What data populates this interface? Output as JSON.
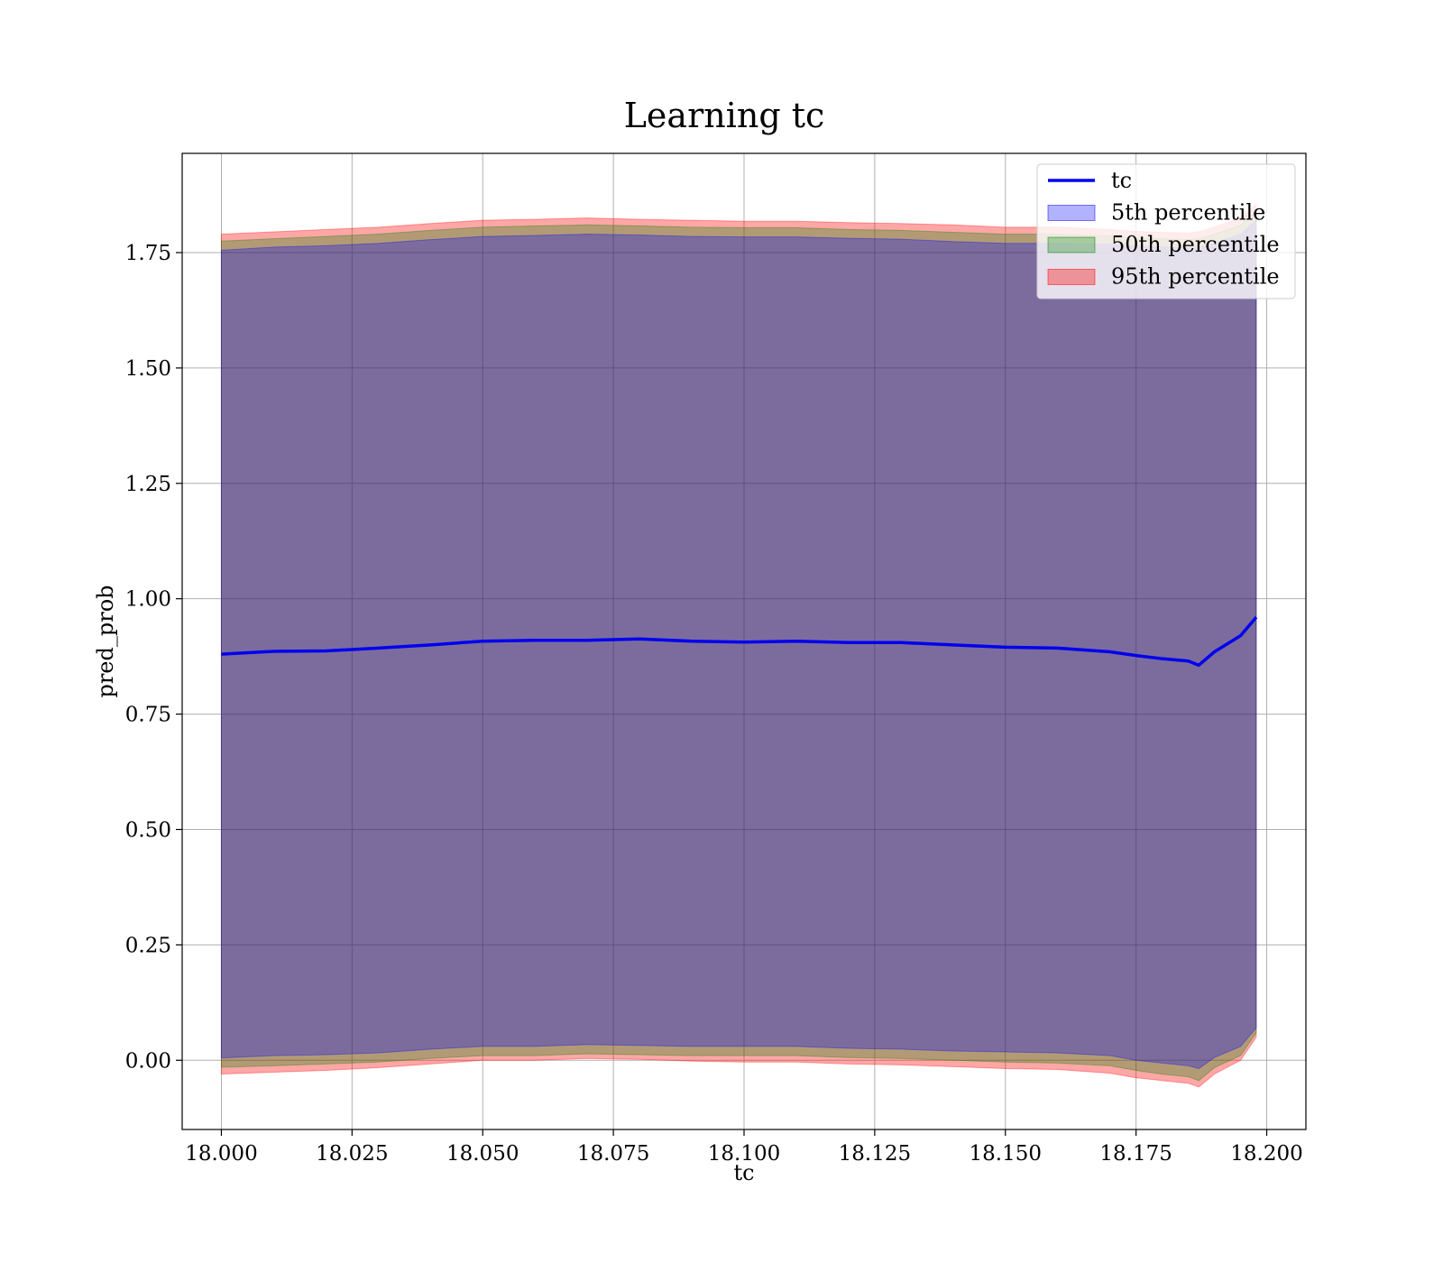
{
  "chart_data": {
    "type": "area",
    "title": "Learning tc",
    "xlabel": "tc",
    "ylabel": "pred_prob",
    "xlim": [
      17.9925,
      18.2075
    ],
    "ylim": [
      -0.15,
      1.965
    ],
    "grid": true,
    "legend_position": "top-right",
    "x_ticks": [
      18.0,
      18.025,
      18.05,
      18.075,
      18.1,
      18.125,
      18.15,
      18.175,
      18.2
    ],
    "x_tick_labels": [
      "18.000",
      "18.025",
      "18.050",
      "18.075",
      "18.100",
      "18.125",
      "18.150",
      "18.175",
      "18.200"
    ],
    "y_ticks": [
      0.0,
      0.25,
      0.5,
      0.75,
      1.0,
      1.25,
      1.5,
      1.75
    ],
    "y_tick_labels": [
      "0.00",
      "0.25",
      "0.50",
      "0.75",
      "1.00",
      "1.25",
      "1.50",
      "1.75"
    ],
    "x": [
      18.0,
      18.01,
      18.02,
      18.03,
      18.04,
      18.05,
      18.06,
      18.07,
      18.08,
      18.09,
      18.1,
      18.11,
      18.12,
      18.13,
      18.14,
      18.15,
      18.16,
      18.17,
      18.175,
      18.18,
      18.185,
      18.187,
      18.19,
      18.195,
      18.198
    ],
    "line": {
      "name": "tc",
      "color": "#0000ee",
      "values": [
        0.88,
        0.886,
        0.887,
        0.893,
        0.9,
        0.908,
        0.91,
        0.91,
        0.913,
        0.908,
        0.906,
        0.908,
        0.905,
        0.905,
        0.9,
        0.895,
        0.893,
        0.885,
        0.877,
        0.87,
        0.865,
        0.856,
        0.885,
        0.92,
        0.96
      ]
    },
    "bands": [
      {
        "name": "5th percentile",
        "color": "#0000ff",
        "opacity": 0.3,
        "lower": [
          0.005,
          0.01,
          0.012,
          0.016,
          0.024,
          0.03,
          0.03,
          0.034,
          0.032,
          0.03,
          0.03,
          0.03,
          0.026,
          0.024,
          0.02,
          0.018,
          0.016,
          0.01,
          0.0,
          -0.006,
          -0.012,
          -0.018,
          0.006,
          0.03,
          0.07
        ],
        "upper": [
          1.755,
          1.762,
          1.765,
          1.77,
          1.778,
          1.785,
          1.787,
          1.79,
          1.788,
          1.785,
          1.784,
          1.784,
          1.781,
          1.779,
          1.774,
          1.77,
          1.77,
          1.768,
          1.764,
          1.762,
          1.76,
          1.762,
          1.77,
          1.79,
          1.82
        ]
      },
      {
        "name": "50th percentile",
        "color": "#008000",
        "opacity": 0.3,
        "lower": [
          -0.015,
          -0.012,
          -0.008,
          -0.004,
          0.004,
          0.01,
          0.01,
          0.014,
          0.012,
          0.01,
          0.01,
          0.01,
          0.006,
          0.004,
          0.0,
          -0.004,
          -0.006,
          -0.012,
          -0.022,
          -0.03,
          -0.036,
          -0.044,
          -0.016,
          0.01,
          0.06
        ],
        "upper": [
          1.775,
          1.78,
          1.785,
          1.79,
          1.798,
          1.805,
          1.808,
          1.81,
          1.808,
          1.805,
          1.804,
          1.804,
          1.8,
          1.798,
          1.794,
          1.79,
          1.79,
          1.786,
          1.782,
          1.78,
          1.778,
          1.78,
          1.79,
          1.81,
          1.84
        ]
      },
      {
        "name": "95th percentile",
        "color": "#ff0000",
        "opacity": 0.35,
        "lower": [
          -0.03,
          -0.026,
          -0.022,
          -0.016,
          -0.008,
          0.0,
          0.0,
          0.004,
          0.002,
          -0.002,
          -0.004,
          -0.004,
          -0.008,
          -0.01,
          -0.014,
          -0.018,
          -0.02,
          -0.028,
          -0.038,
          -0.044,
          -0.05,
          -0.058,
          -0.03,
          0.0,
          0.05
        ],
        "upper": [
          1.79,
          1.795,
          1.8,
          1.805,
          1.813,
          1.82,
          1.822,
          1.825,
          1.822,
          1.82,
          1.818,
          1.818,
          1.815,
          1.813,
          1.81,
          1.805,
          1.805,
          1.8,
          1.796,
          1.794,
          1.792,
          1.795,
          1.805,
          1.825,
          1.855
        ]
      }
    ],
    "legend": [
      "tc",
      "5th percentile",
      "50th percentile",
      "95th percentile"
    ]
  }
}
